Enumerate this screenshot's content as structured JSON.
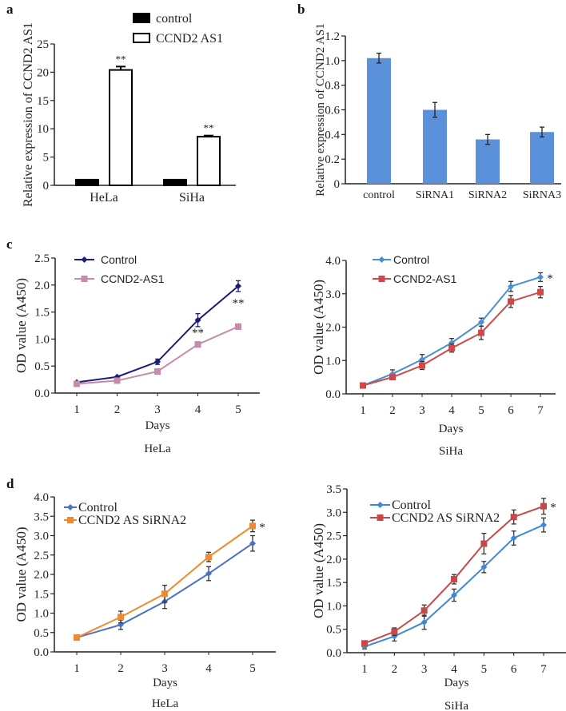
{
  "panel_labels": {
    "a": "a",
    "b": "b",
    "c": "c",
    "d": "d"
  },
  "chart_data": [
    {
      "id": "a",
      "type": "bar",
      "categories": [
        "HeLa",
        "SiHa"
      ],
      "series": [
        {
          "name": "control",
          "values": [
            1,
            1
          ],
          "errors": [
            0.05,
            0.05
          ],
          "color": "#000000",
          "fill": "#000000"
        },
        {
          "name": "CCND2 AS1",
          "values": [
            20.4,
            8.6
          ],
          "errors": [
            0.6,
            0.2
          ],
          "color": "#000000",
          "fill": "#ffffff",
          "annotations": [
            "**",
            "**"
          ]
        }
      ],
      "ylabel": "Relative expression of CCND2 AS1",
      "ylim": [
        0,
        25
      ],
      "yticks": [
        "0",
        "5",
        "10",
        "15",
        "20",
        "25"
      ],
      "legend": "top-right"
    },
    {
      "id": "b",
      "type": "bar",
      "categories": [
        "control",
        "SiRNA1",
        "SiRNA2",
        "SiRNA3"
      ],
      "series": [
        {
          "values": [
            1.02,
            0.6,
            0.36,
            0.42
          ],
          "errors": [
            0.04,
            0.06,
            0.04,
            0.04
          ],
          "color": "#4f86d2",
          "fill": "#5b91da"
        }
      ],
      "ylabel": "Relative expression of CCND2 AS1",
      "ylim": [
        0,
        1.2
      ],
      "yticks": [
        "0",
        "0.2",
        "0.4",
        "0.6",
        "0.8",
        "1.0",
        "1.2"
      ]
    },
    {
      "id": "c1",
      "type": "line",
      "x": [
        1,
        2,
        3,
        4,
        5
      ],
      "xticks": [
        "1",
        "2",
        "3",
        "4",
        "5"
      ],
      "series": [
        {
          "name": "Control",
          "values": [
            0.2,
            0.3,
            0.58,
            1.35,
            1.98
          ],
          "errors": [
            0.01,
            0.01,
            0.05,
            0.12,
            0.1
          ],
          "color": "#1c1c78",
          "marker": "diamond"
        },
        {
          "name": "CCND2-AS1",
          "values": [
            0.17,
            0.23,
            0.4,
            0.9,
            1.23
          ],
          "errors": [
            0.01,
            0.01,
            0.05,
            0.05,
            0.05
          ],
          "color": "#c68aab",
          "marker": "square"
        }
      ],
      "annotations": [
        {
          "x": 4,
          "text": "**"
        },
        {
          "x": 5,
          "text": "**"
        }
      ],
      "xlabel": "Days",
      "subtitle": "HeLa",
      "ylabel": "OD value (A450)",
      "ylim": [
        0,
        2.5
      ],
      "yticks": [
        "0.0",
        "0.5",
        "1.0",
        "1.5",
        "2.0",
        "2.5"
      ],
      "legend": "top-left"
    },
    {
      "id": "c2",
      "type": "line",
      "x": [
        1,
        2,
        3,
        4,
        5,
        6,
        7
      ],
      "xticks": [
        "1",
        "2",
        "3",
        "4",
        "5",
        "6",
        "7"
      ],
      "series": [
        {
          "name": "Control",
          "values": [
            0.25,
            0.6,
            1.03,
            1.53,
            2.15,
            3.22,
            3.5
          ],
          "errors": [
            0.03,
            0.12,
            0.15,
            0.13,
            0.12,
            0.15,
            0.13
          ],
          "color": "#4a8fd4",
          "marker": "diamond"
        },
        {
          "name": "CCND2-AS1",
          "values": [
            0.25,
            0.5,
            0.85,
            1.37,
            1.83,
            2.77,
            3.05
          ],
          "errors": [
            0.03,
            0.06,
            0.12,
            0.12,
            0.2,
            0.18,
            0.17
          ],
          "color": "#d04848",
          "marker": "square"
        }
      ],
      "annotations": [
        {
          "x": 7,
          "text": "*"
        }
      ],
      "xlabel": "Days",
      "subtitle": "SiHa",
      "ylabel": "OD value (A450)",
      "ylim": [
        0,
        4.0
      ],
      "yticks": [
        "0.0",
        "1.0",
        "2.0",
        "3.0",
        "4.0"
      ],
      "legend": "top-left"
    },
    {
      "id": "d1",
      "type": "line",
      "x": [
        1,
        2,
        3,
        4,
        5
      ],
      "xticks": [
        "1",
        "2",
        "3",
        "4",
        "5"
      ],
      "series": [
        {
          "name": "Control",
          "values": [
            0.37,
            0.7,
            1.3,
            2.02,
            2.8
          ],
          "errors": [
            0.05,
            0.12,
            0.18,
            0.18,
            0.2
          ],
          "color": "#4a70c8",
          "marker": "diamond"
        },
        {
          "name": "CCND2 AS SiRNA2",
          "values": [
            0.37,
            0.9,
            1.5,
            2.45,
            3.25
          ],
          "errors": [
            0.05,
            0.15,
            0.22,
            0.12,
            0.15
          ],
          "color": "#f08a30",
          "marker": "square"
        }
      ],
      "annotations": [
        {
          "x": 5,
          "text": "*"
        }
      ],
      "xlabel": "Days",
      "subtitle": "HeLa",
      "ylabel": "OD value (A450)",
      "ylim": [
        0,
        4.0
      ],
      "yticks": [
        "0.0",
        "0.5",
        "1.0",
        "1.5",
        "2.0",
        "2.5",
        "3.0",
        "3.5",
        "4.0"
      ],
      "legend": "top-left"
    },
    {
      "id": "d2",
      "type": "line",
      "x": [
        1,
        2,
        3,
        4,
        5,
        6,
        7
      ],
      "xticks": [
        "1",
        "2",
        "3",
        "4",
        "5",
        "6",
        "7"
      ],
      "series": [
        {
          "name": "Control",
          "values": [
            0.13,
            0.35,
            0.65,
            1.23,
            1.83,
            2.45,
            2.73
          ],
          "errors": [
            0.05,
            0.1,
            0.15,
            0.13,
            0.12,
            0.15,
            0.15
          ],
          "color": "#3f88d4",
          "marker": "diamond"
        },
        {
          "name": "CCND2 AS SiRNA2",
          "values": [
            0.2,
            0.45,
            0.9,
            1.57,
            2.33,
            2.9,
            3.13
          ],
          "errors": [
            0.04,
            0.08,
            0.12,
            0.1,
            0.22,
            0.15,
            0.17
          ],
          "color": "#c84848",
          "marker": "square"
        }
      ],
      "annotations": [
        {
          "x": 7,
          "text": "*"
        }
      ],
      "xlabel": "Days",
      "subtitle": "SiHa",
      "ylabel": "OD value (A450)",
      "ylim": [
        0,
        3.5
      ],
      "yticks": [
        "0.0",
        "0.5",
        "1.0",
        "1.5",
        "2.0",
        "2.5",
        "3.0",
        "3.5"
      ],
      "legend": "top-left"
    }
  ]
}
